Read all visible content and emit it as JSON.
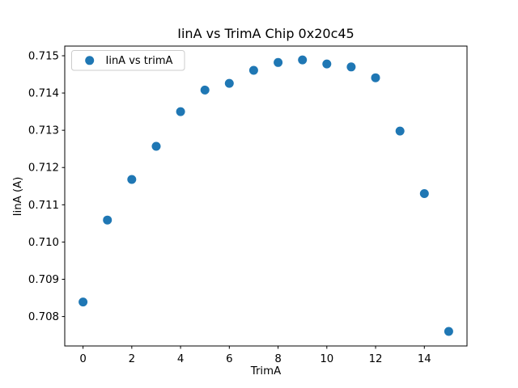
{
  "chart_data": {
    "type": "scatter",
    "title": "IinA vs TrimA Chip 0x20c45",
    "xlabel": "TrimA",
    "ylabel": "IinA (A)",
    "legend": {
      "label": "IinA vs trimA",
      "position": "upper left"
    },
    "series": [
      {
        "name": "IinA vs trimA",
        "x": [
          0,
          1,
          2,
          3,
          4,
          5,
          6,
          7,
          8,
          9,
          10,
          11,
          12,
          13,
          14,
          15
        ],
        "y": [
          0.70839,
          0.71059,
          0.71168,
          0.71257,
          0.7135,
          0.71408,
          0.71426,
          0.71461,
          0.71482,
          0.71489,
          0.71478,
          0.7147,
          0.71441,
          0.71298,
          0.7113,
          0.7076
        ]
      }
    ],
    "xticks": {
      "values": [
        0,
        2,
        4,
        6,
        8,
        10,
        12,
        14
      ],
      "labels": [
        "0",
        "2",
        "4",
        "6",
        "8",
        "10",
        "12",
        "14"
      ]
    },
    "yticks": {
      "values": [
        0.708,
        0.709,
        0.71,
        0.711,
        0.712,
        0.713,
        0.714,
        0.715
      ],
      "labels": [
        "0.708",
        "0.709",
        "0.710",
        "0.711",
        "0.712",
        "0.713",
        "0.714",
        "0.715"
      ]
    },
    "xlim": [
      -0.75,
      15.75
    ],
    "ylim": [
      0.70721,
      0.71526
    ],
    "grid": false,
    "marker_color": "#1f77b4",
    "spine_color": "#000000",
    "legend_border_color": "#cccccc",
    "background_color": "#ffffff"
  }
}
